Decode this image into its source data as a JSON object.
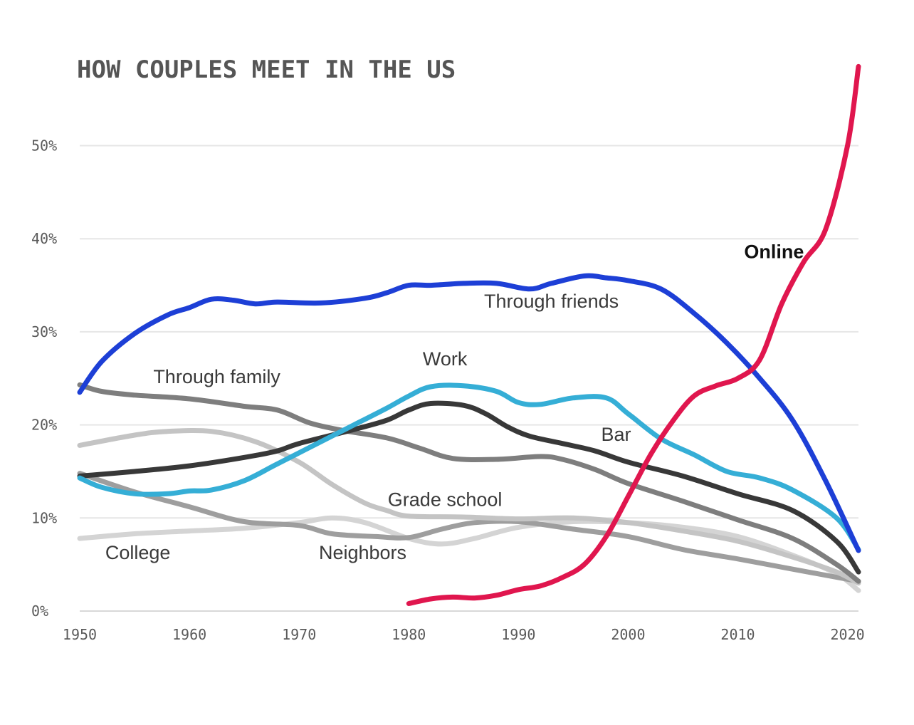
{
  "chart_data": {
    "type": "line",
    "title": "HOW COUPLES MEET IN THE US",
    "xlabel": "",
    "ylabel": "",
    "xlim": [
      1950,
      2021
    ],
    "ylim": [
      0,
      55
    ],
    "x_ticks": [
      1950,
      1960,
      1970,
      1980,
      1990,
      2000,
      2010,
      2020
    ],
    "y_ticks": [
      0,
      10,
      20,
      30,
      40,
      50
    ],
    "y_tick_labels": [
      "0%",
      "10%",
      "20%",
      "30%",
      "40%",
      "50%"
    ],
    "grid": true,
    "series": [
      {
        "name": "College",
        "color": "#d4d4d4",
        "points": [
          [
            1950,
            7.8
          ],
          [
            1955,
            8.3
          ],
          [
            1960,
            8.6
          ],
          [
            1965,
            8.9
          ],
          [
            1970,
            9.5
          ],
          [
            1973,
            10.0
          ],
          [
            1976,
            9.5
          ],
          [
            1980,
            7.8
          ],
          [
            1983,
            7.2
          ],
          [
            1986,
            7.8
          ],
          [
            1990,
            9.0
          ],
          [
            1995,
            9.6
          ],
          [
            2000,
            9.5
          ],
          [
            2005,
            9.0
          ],
          [
            2010,
            8.0
          ],
          [
            2015,
            6.0
          ],
          [
            2019,
            4.0
          ],
          [
            2021,
            2.2
          ]
        ]
      },
      {
        "name": "Neighbors",
        "color": "#9e9e9e",
        "points": [
          [
            1950,
            14.8
          ],
          [
            1955,
            12.8
          ],
          [
            1960,
            11.2
          ],
          [
            1965,
            9.6
          ],
          [
            1970,
            9.2
          ],
          [
            1973,
            8.3
          ],
          [
            1977,
            8.0
          ],
          [
            1980,
            7.9
          ],
          [
            1983,
            8.8
          ],
          [
            1986,
            9.5
          ],
          [
            1990,
            9.6
          ],
          [
            1995,
            8.8
          ],
          [
            2000,
            8.0
          ],
          [
            2005,
            6.6
          ],
          [
            2010,
            5.6
          ],
          [
            2015,
            4.5
          ],
          [
            2021,
            3.2
          ]
        ]
      },
      {
        "name": "Grade school",
        "color": "#c4c4c4",
        "points": [
          [
            1950,
            17.8
          ],
          [
            1955,
            18.9
          ],
          [
            1958,
            19.3
          ],
          [
            1962,
            19.3
          ],
          [
            1966,
            18.2
          ],
          [
            1970,
            16.0
          ],
          [
            1973,
            13.6
          ],
          [
            1976,
            11.6
          ],
          [
            1978,
            10.8
          ],
          [
            1980,
            10.2
          ],
          [
            1985,
            10.1
          ],
          [
            1990,
            9.9
          ],
          [
            1995,
            10.0
          ],
          [
            2000,
            9.5
          ],
          [
            2005,
            8.6
          ],
          [
            2010,
            7.5
          ],
          [
            2015,
            5.8
          ],
          [
            2019,
            4.2
          ],
          [
            2021,
            3.0
          ]
        ]
      },
      {
        "name": "Through family",
        "color": "#7e7e7e",
        "points": [
          [
            1950,
            24.3
          ],
          [
            1952,
            23.6
          ],
          [
            1955,
            23.2
          ],
          [
            1960,
            22.8
          ],
          [
            1965,
            22.0
          ],
          [
            1968,
            21.6
          ],
          [
            1971,
            20.2
          ],
          [
            1974,
            19.4
          ],
          [
            1978,
            18.6
          ],
          [
            1981,
            17.5
          ],
          [
            1984,
            16.4
          ],
          [
            1988,
            16.3
          ],
          [
            1992,
            16.6
          ],
          [
            1994,
            16.3
          ],
          [
            1997,
            15.2
          ],
          [
            2000,
            13.7
          ],
          [
            2005,
            11.8
          ],
          [
            2010,
            9.8
          ],
          [
            2015,
            7.8
          ],
          [
            2019,
            5.0
          ],
          [
            2021,
            3.2
          ]
        ]
      },
      {
        "name": "Bar",
        "color": "#383838",
        "points": [
          [
            1950,
            14.5
          ],
          [
            1955,
            15.0
          ],
          [
            1960,
            15.6
          ],
          [
            1965,
            16.5
          ],
          [
            1968,
            17.2
          ],
          [
            1970,
            18.0
          ],
          [
            1975,
            19.5
          ],
          [
            1978,
            20.5
          ],
          [
            1980,
            21.6
          ],
          [
            1982,
            22.3
          ],
          [
            1985,
            22.1
          ],
          [
            1987,
            21.2
          ],
          [
            1989,
            19.8
          ],
          [
            1991,
            18.8
          ],
          [
            1994,
            18.0
          ],
          [
            1997,
            17.2
          ],
          [
            2000,
            16.0
          ],
          [
            2005,
            14.5
          ],
          [
            2010,
            12.6
          ],
          [
            2015,
            10.8
          ],
          [
            2019,
            7.5
          ],
          [
            2021,
            4.2
          ]
        ]
      },
      {
        "name": "Work",
        "color": "#35aed6",
        "points": [
          [
            1950,
            14.3
          ],
          [
            1952,
            13.3
          ],
          [
            1955,
            12.6
          ],
          [
            1958,
            12.6
          ],
          [
            1960,
            12.9
          ],
          [
            1962,
            13.0
          ],
          [
            1965,
            14.0
          ],
          [
            1968,
            15.8
          ],
          [
            1972,
            18.2
          ],
          [
            1975,
            20.0
          ],
          [
            1978,
            21.8
          ],
          [
            1980,
            23.1
          ],
          [
            1982,
            24.1
          ],
          [
            1985,
            24.2
          ],
          [
            1988,
            23.6
          ],
          [
            1990,
            22.4
          ],
          [
            1992,
            22.2
          ],
          [
            1995,
            22.9
          ],
          [
            1998,
            22.9
          ],
          [
            2000,
            21.2
          ],
          [
            2003,
            18.5
          ],
          [
            2006,
            16.8
          ],
          [
            2009,
            15.0
          ],
          [
            2012,
            14.3
          ],
          [
            2015,
            13.0
          ],
          [
            2019,
            10.0
          ],
          [
            2021,
            6.6
          ]
        ]
      },
      {
        "name": "Through friends",
        "color": "#1d3fd6",
        "points": [
          [
            1950,
            23.5
          ],
          [
            1952,
            26.8
          ],
          [
            1955,
            29.8
          ],
          [
            1958,
            31.8
          ],
          [
            1960,
            32.6
          ],
          [
            1962,
            33.5
          ],
          [
            1964,
            33.4
          ],
          [
            1966,
            33.0
          ],
          [
            1968,
            33.2
          ],
          [
            1972,
            33.1
          ],
          [
            1976,
            33.6
          ],
          [
            1978,
            34.2
          ],
          [
            1980,
            35.0
          ],
          [
            1982,
            35.0
          ],
          [
            1985,
            35.2
          ],
          [
            1988,
            35.2
          ],
          [
            1991,
            34.6
          ],
          [
            1993,
            35.2
          ],
          [
            1996,
            36.0
          ],
          [
            1998,
            35.8
          ],
          [
            2000,
            35.5
          ],
          [
            2003,
            34.6
          ],
          [
            2006,
            32.0
          ],
          [
            2009,
            28.8
          ],
          [
            2012,
            25.0
          ],
          [
            2015,
            20.5
          ],
          [
            2018,
            14.0
          ],
          [
            2021,
            6.5
          ]
        ]
      },
      {
        "name": "Online",
        "color": "#e0164e",
        "points": [
          [
            1980,
            0.8
          ],
          [
            1982,
            1.3
          ],
          [
            1984,
            1.5
          ],
          [
            1986,
            1.4
          ],
          [
            1988,
            1.7
          ],
          [
            1990,
            2.3
          ],
          [
            1992,
            2.7
          ],
          [
            1994,
            3.6
          ],
          [
            1996,
            5.0
          ],
          [
            1998,
            8.0
          ],
          [
            2000,
            12.3
          ],
          [
            2002,
            16.7
          ],
          [
            2004,
            20.3
          ],
          [
            2006,
            23.1
          ],
          [
            2008,
            24.2
          ],
          [
            2010,
            25.0
          ],
          [
            2012,
            27.0
          ],
          [
            2014,
            33.0
          ],
          [
            2016,
            37.5
          ],
          [
            2018,
            41.0
          ],
          [
            2020,
            50.0
          ],
          [
            2021,
            58.5
          ]
        ]
      }
    ],
    "annotations": [
      {
        "text": "Online",
        "x": 2013.3,
        "y": 37.9,
        "bold": true
      },
      {
        "text": "Through friends",
        "x": 1993,
        "y": 32.6
      },
      {
        "text": "Work",
        "x": 1983.3,
        "y": 26.4
      },
      {
        "text": "Through family",
        "x": 1962.5,
        "y": 24.5
      },
      {
        "text": "Bar",
        "x": 1998.9,
        "y": 18.3
      },
      {
        "text": "Grade school",
        "x": 1983.3,
        "y": 11.3
      },
      {
        "text": "College",
        "x": 1955.3,
        "y": 5.6
      },
      {
        "text": "Neighbors",
        "x": 1975.8,
        "y": 5.6
      }
    ]
  }
}
